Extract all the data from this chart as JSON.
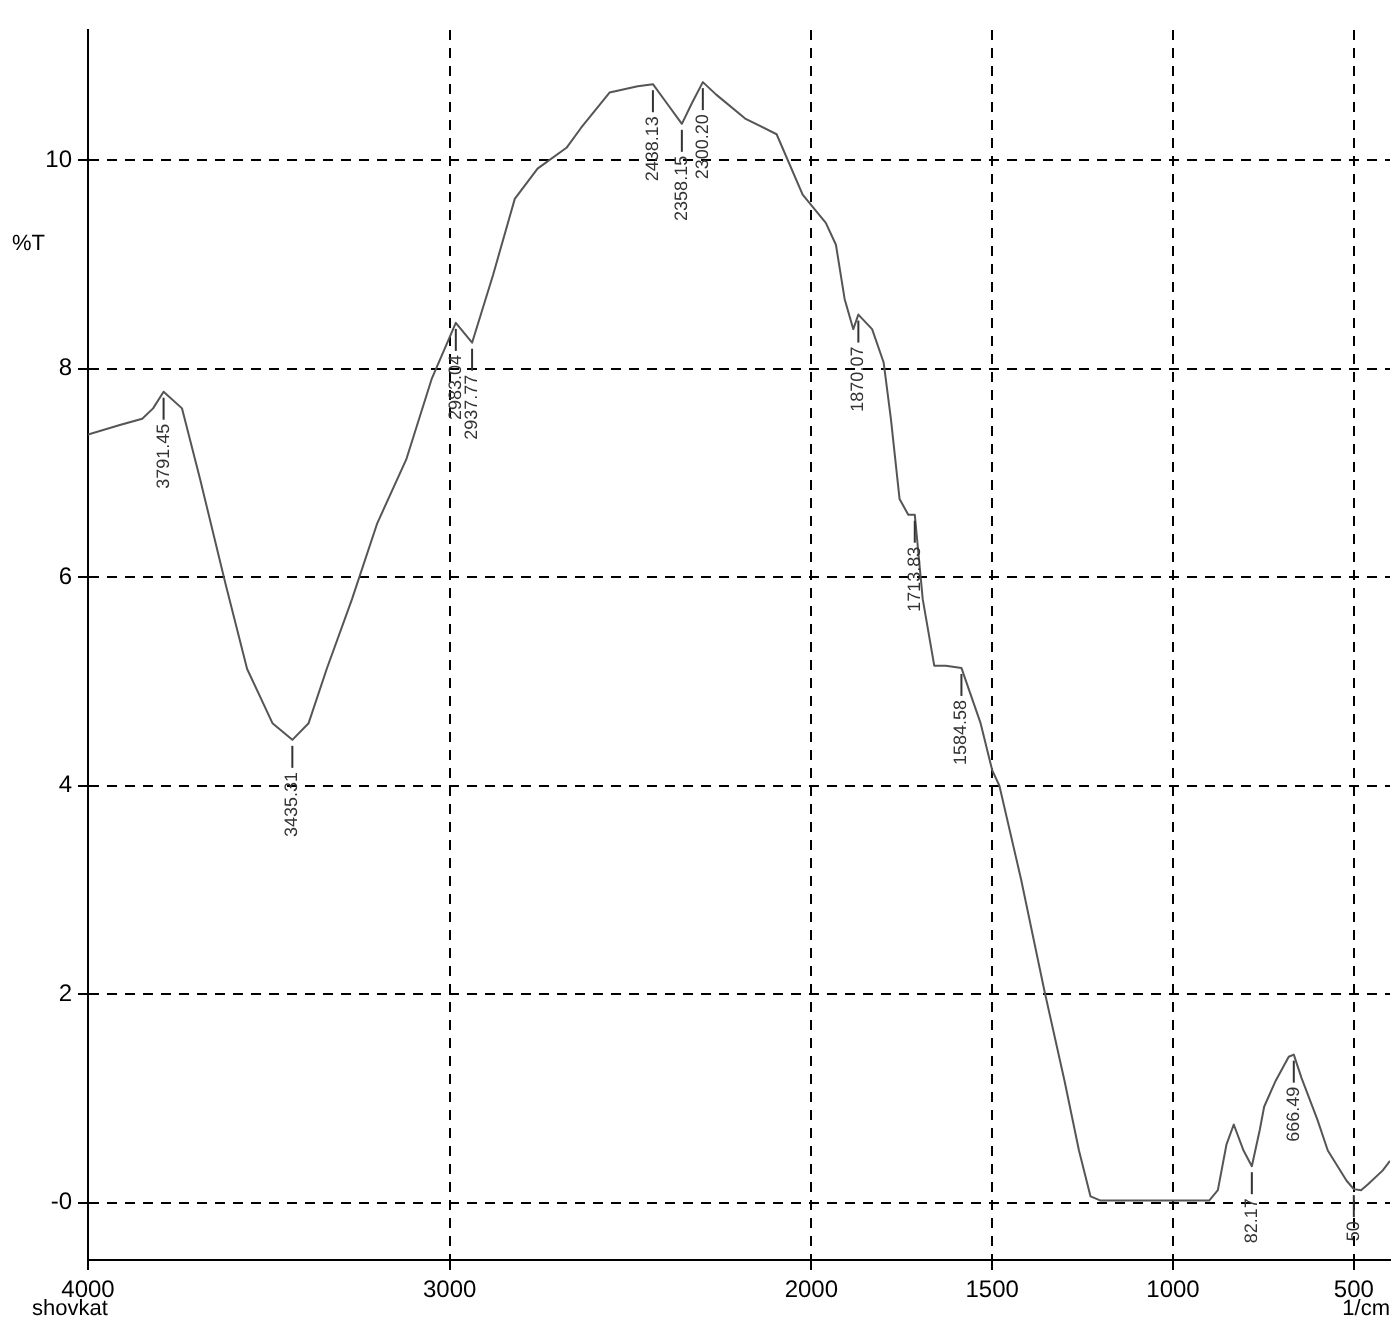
{
  "chart_data": {
    "type": "line",
    "xlabel": "1/cm",
    "ylabel": "%T",
    "color": "#555555",
    "grid": true,
    "line_style": "solid",
    "marker": "none",
    "x": [
      4000,
      3912,
      3850,
      3820,
      3791,
      3740,
      3690,
      3620,
      3560,
      3490,
      3435,
      3390,
      3340,
      3270,
      3200,
      3120,
      3050,
      2983,
      2938,
      2880,
      2820,
      2757,
      2677,
      2637,
      2558,
      2480,
      2438,
      2400,
      2358,
      2330,
      2300,
      2263,
      2183,
      2096,
      2024,
      1960,
      1932,
      1908,
      1884,
      1870,
      1832,
      1800,
      1780,
      1756,
      1732,
      1714,
      1692,
      1660,
      1628,
      1585,
      1564,
      1532,
      1500,
      1480,
      1420,
      1356,
      1300,
      1260,
      1228,
      1200,
      1100,
      900,
      876,
      852,
      832,
      805,
      782,
      760,
      748,
      716,
      680,
      666,
      645,
      600,
      572,
      520,
      500,
      480,
      460,
      420,
      400
    ],
    "values": [
      7.37,
      7.46,
      7.52,
      7.62,
      7.78,
      7.62,
      6.94,
      5.94,
      5.12,
      4.6,
      4.44,
      4.6,
      5.12,
      5.79,
      6.52,
      7.13,
      7.9,
      8.44,
      8.25,
      8.9,
      9.63,
      9.92,
      10.12,
      10.31,
      10.65,
      10.71,
      10.73,
      10.55,
      10.35,
      10.55,
      10.75,
      10.63,
      10.4,
      10.25,
      9.67,
      9.4,
      9.19,
      8.67,
      8.38,
      8.52,
      8.38,
      8.06,
      7.52,
      6.75,
      6.6,
      6.6,
      5.79,
      5.15,
      5.15,
      5.13,
      4.92,
      4.6,
      4.15,
      4.0,
      3.1,
      2.04,
      1.17,
      0.5,
      0.06,
      0.02,
      0.02,
      0.02,
      0.12,
      0.56,
      0.75,
      0.5,
      0.35,
      0.7,
      0.92,
      1.17,
      1.4,
      1.42,
      1.2,
      0.79,
      0.5,
      0.21,
      0.13,
      0.12,
      0.18,
      0.31,
      0.4
    ],
    "xlim": [
      4000,
      400
    ],
    "xticks": [
      4000,
      3000,
      2000,
      1500,
      1000,
      500
    ],
    "ylim": [
      -0.55,
      11.25
    ],
    "yticks": [
      {
        "value": 0,
        "label": "-0"
      },
      2,
      4,
      6,
      8,
      10
    ],
    "annotations": [
      {
        "text": "3791.45",
        "x": 3791,
        "y": 7.78
      },
      {
        "text": "3435.31",
        "x": 3435,
        "y": 4.44
      },
      {
        "text": "2983.04",
        "x": 2983,
        "y": 8.44
      },
      {
        "text": "2937.77",
        "x": 2938,
        "y": 8.25
      },
      {
        "text": "2438.13",
        "x": 2438,
        "y": 10.73
      },
      {
        "text": "2358.15",
        "x": 2358,
        "y": 10.35
      },
      {
        "text": "2300.20",
        "x": 2300,
        "y": 10.75
      },
      {
        "text": "1870.07",
        "x": 1870,
        "y": 8.52
      },
      {
        "text": "1713.83",
        "x": 1714,
        "y": 6.6
      },
      {
        "text": "1584.58",
        "x": 1585,
        "y": 5.13
      },
      {
        "text": "82.17",
        "x": 782,
        "y": 0.35
      },
      {
        "text": "666.49",
        "x": 666,
        "y": 1.42
      },
      {
        "text": "50",
        "x": 500,
        "y": 0.13
      },
      "shovkat"
    ]
  }
}
